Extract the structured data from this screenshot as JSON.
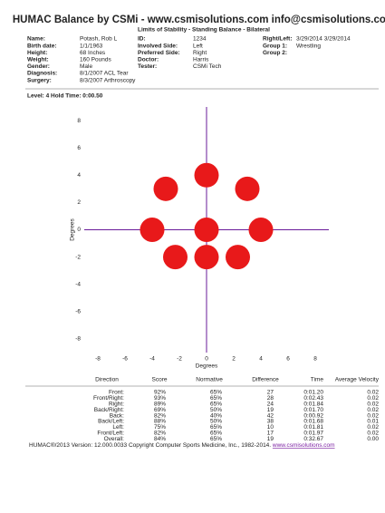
{
  "header": {
    "title": "HUMAC Balance by CSMi - www.csmisolutions.com info@csmisolutions.com",
    "subtitle": "Limits of Stability - Standing Balance - Bilateral"
  },
  "patient": [
    [
      "Name:",
      "Potash, Rob L",
      "ID:",
      "1234",
      "Right/Left:",
      "3/29/2014 3/29/2014"
    ],
    [
      "Birth date:",
      "1/1/1963",
      "Involved Side:",
      "Left",
      "Group 1:",
      "Wrestling"
    ],
    [
      "Height:",
      "68 Inches",
      "Preferred Side:",
      "Right",
      "Group 2:"
    ],
    [
      "Weight:",
      "160 Pounds",
      "Doctor:",
      "Harris"
    ],
    [
      "Gender:",
      "Male",
      "Tester:",
      "CSMi Tech"
    ],
    [
      "Diagnosis:",
      "8/1/2007 ACL Tear"
    ],
    [
      "Surgery:",
      "8/3/2007 Arthroscopy"
    ]
  ],
  "level": "Level: 4 Hold Time: 0:00.50",
  "chart_data": {
    "type": "scatter",
    "xlabel": "Degrees",
    "ylabel": "Degrees",
    "x": [
      0,
      -3,
      3,
      -4,
      0,
      4,
      -2.3,
      0,
      2.3
    ],
    "y": [
      4,
      3,
      3,
      0,
      0,
      0,
      -2,
      -2,
      -2
    ],
    "color": "#e8191a",
    "axis_color": "#6a1b9a",
    "xlim": [
      -9,
      9
    ],
    "ylim": [
      -9,
      9
    ],
    "xticks": [
      -8,
      -6,
      -4,
      -2,
      0,
      2,
      4,
      6,
      8
    ],
    "yticks": [
      8,
      6,
      4,
      2,
      0,
      -2,
      -4,
      -6,
      -8
    ]
  },
  "table": {
    "header": [
      "Direction",
      "Score",
      "Normative",
      "Difference",
      "Time",
      "Average Velocity"
    ],
    "rows": [
      [
        "Front:",
        "92%",
        "65%",
        "27",
        "0:01.20",
        "0.02"
      ],
      [
        "Front/Right:",
        "93%",
        "65%",
        "28",
        "0:02.43",
        "0.02"
      ],
      [
        "Right:",
        "89%",
        "65%",
        "24",
        "0:01.84",
        "0.02"
      ],
      [
        "Back/Right:",
        "69%",
        "50%",
        "19",
        "0:01.70",
        "0.02"
      ],
      [
        "Back:",
        "82%",
        "40%",
        "42",
        "0:00.92",
        "0.02"
      ],
      [
        "Back/Left:",
        "88%",
        "50%",
        "38",
        "0:01.68",
        "0.01"
      ],
      [
        "Left:",
        "75%",
        "65%",
        "10",
        "0:01.81",
        "0.02"
      ],
      [
        "Front/Left:",
        "82%",
        "65%",
        "17",
        "0:01.97",
        "0.02"
      ],
      [
        "Overall:",
        "84%",
        "65%",
        "19",
        "0:32.67",
        "0.00"
      ]
    ]
  },
  "footer": {
    "text": "HUMAC®/2013 Version: 12.000.0033 Copyright Computer Sports Medicine, Inc., 1982-2014.",
    "link": "www.csmisolutions.com"
  }
}
